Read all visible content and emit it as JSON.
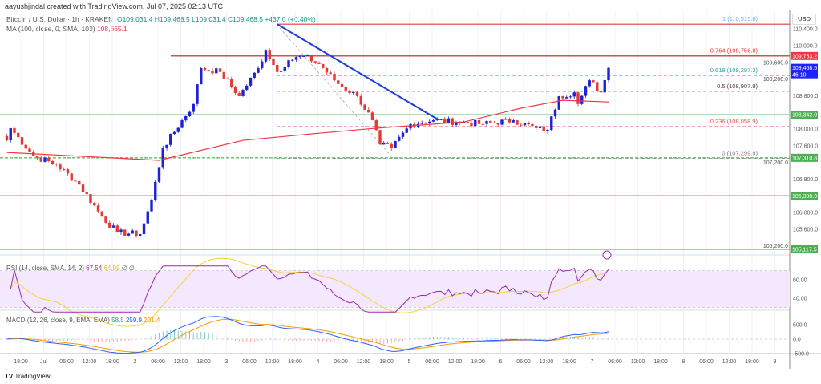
{
  "header": {
    "credit": "aayushjindal created with TradingView.com, Jul 07, 2025 02:13 UTC",
    "symbol": "Bitcoin / U.S. Dollar · 1h · KRAKEN",
    "open": "O109,031.4",
    "high": "H109,468.5",
    "low": "L109,031.4",
    "close": "C109,468.5",
    "change": "+437.0 (+0.40%)",
    "ma_label": "MA (100, close, 0, SMA, 100)",
    "ma_value": "108,665.1"
  },
  "currency": "USD",
  "rsi": {
    "label": "RSI (14, close, SMA, 14, 2)",
    "value": "67.54",
    "sma": "64.99",
    "extra1": "∅",
    "extra2": "∅",
    "ticks": [
      "60.00",
      "40.00"
    ]
  },
  "macd": {
    "label": "MACD (12, 26, close, 9, EMA, EMA)",
    "hist": "58.5",
    "macd": "259.9",
    "signal": "201.4",
    "ticks": [
      "500.0",
      "0.0",
      "-500.0"
    ]
  },
  "price_ticks": [
    "110,400.0",
    "110,000.0",
    "109,600.0",
    "109,200.0",
    "108,800.0",
    "108,000.0",
    "107,600.0",
    "107,200.0",
    "106,800.0",
    "106,000.0",
    "105,600.0",
    "105,200.0"
  ],
  "price_tags": [
    {
      "label": "109,753.2",
      "price": 109753.2,
      "color": "#f23645"
    },
    {
      "label": "109,468.5",
      "sub": "46:10",
      "price": 109468.5,
      "color": "#1e22ff"
    },
    {
      "label": "108,342.0",
      "price": 108342,
      "color": "#4caf50"
    },
    {
      "label": "107,310.8",
      "price": 107310.8,
      "color": "#4caf50"
    },
    {
      "label": "106,398.9",
      "price": 106398.9,
      "color": "#4caf50"
    },
    {
      "label": "105,117.5",
      "price": 105117.5,
      "color": "#4caf50"
    }
  ],
  "fib_levels": [
    {
      "label": "1 (110,515.8)",
      "price": 110515.8,
      "color": "#64b5f6"
    },
    {
      "label": "0.764 (109,756.8)",
      "price": 109756.8,
      "color": "#e53935"
    },
    {
      "label": "0.618 (109,287.3)",
      "price": 109287.3,
      "color": "#26a69a"
    },
    {
      "label": "0.5 (108,907.9)",
      "price": 108907.9,
      "color": "#5d4037"
    },
    {
      "label": "0.236 (108,058.9)",
      "price": 108058.9,
      "color": "#ef5350"
    },
    {
      "label": "0 (107,299.9)",
      "price": 107299.9,
      "color": "#787b86"
    }
  ],
  "time_ticks": [
    "18:00",
    "Jul",
    "06:00",
    "12:00",
    "18:00",
    "2",
    "06:00",
    "12:00",
    "18:00",
    "3",
    "06:00",
    "12:00",
    "18:00",
    "4",
    "06:00",
    "12:00",
    "18:00",
    "5",
    "06:00",
    "12:00",
    "18:00",
    "6",
    "06:00",
    "12:00",
    "18:00",
    "7",
    "06:00",
    "12:00",
    "18:00",
    "8",
    "06:00",
    "12:00",
    "18:00",
    "9"
  ],
  "logo": {
    "mark": "TV",
    "name": "TradingView"
  },
  "colors": {
    "up": "#1e22d6",
    "down": "#e53935",
    "ma": "#f23645",
    "trend": "#1e3adf",
    "rsi": "#9c27b0",
    "rsi_sma": "#f5d33b",
    "macd": "#2962ff",
    "signal": "#ff9800"
  },
  "chart_data": {
    "type": "candlestick",
    "title": "Bitcoin / U.S. Dollar · 1h · KRAKEN",
    "x_unit": "hours from Jul 1 00:00 UTC",
    "ylim": [
      105000,
      110700
    ],
    "close_path": [
      [
        -10,
        107730
      ],
      [
        -9,
        108020
      ],
      [
        -3,
        107350
      ],
      [
        3,
        107150
      ],
      [
        9,
        106670
      ],
      [
        15,
        105900
      ],
      [
        19,
        105520
      ],
      [
        25,
        105480
      ],
      [
        28,
        106290
      ],
      [
        31,
        107540
      ],
      [
        39,
        108600
      ],
      [
        41,
        109460
      ],
      [
        46,
        109370
      ],
      [
        51,
        108790
      ],
      [
        56,
        109460
      ],
      [
        58,
        109900
      ],
      [
        61,
        109370
      ],
      [
        64,
        109650
      ],
      [
        68,
        109750
      ],
      [
        72,
        109560
      ],
      [
        77,
        109080
      ],
      [
        82,
        108790
      ],
      [
        86,
        108210
      ],
      [
        88,
        107630
      ],
      [
        91,
        107540
      ],
      [
        96,
        108120
      ],
      [
        102,
        108210
      ],
      [
        108,
        108170
      ],
      [
        115,
        108120
      ],
      [
        123,
        108210
      ],
      [
        129,
        108020
      ],
      [
        132,
        107980
      ],
      [
        135,
        108790
      ],
      [
        139,
        108880
      ],
      [
        140,
        108600
      ],
      [
        143,
        109170
      ],
      [
        146,
        108880
      ],
      [
        148,
        109468.5
      ]
    ],
    "ma100": [
      [
        -10,
        107440
      ],
      [
        30,
        107250
      ],
      [
        52,
        107730
      ],
      [
        72,
        107900
      ],
      [
        87,
        108020
      ],
      [
        110,
        108170
      ],
      [
        125,
        108500
      ],
      [
        136,
        108690
      ],
      [
        148,
        108650
      ]
    ],
    "trendline": [
      [
        61,
        110515.8
      ],
      [
        103,
        108240
      ]
    ],
    "support_lines": [
      108342,
      107310.8,
      106398.9,
      105117.5
    ],
    "resistance_lines": [
      109753.2,
      110515.8
    ]
  }
}
